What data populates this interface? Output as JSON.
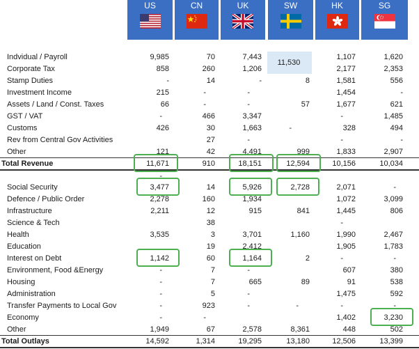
{
  "countries": [
    {
      "code": "US",
      "flag": "us-flag-icon"
    },
    {
      "code": "CN",
      "flag": "cn-flag-icon"
    },
    {
      "code": "UK",
      "flag": "uk-flag-icon"
    },
    {
      "code": "SW",
      "flag": "sw-flag-icon"
    },
    {
      "code": "HK",
      "flag": "hk-flag-icon"
    },
    {
      "code": "SG",
      "flag": "sg-flag-icon"
    }
  ],
  "revenue_rows": [
    {
      "label": "Indvidual / Payroll",
      "values": [
        "9,985",
        "70",
        "7,443",
        "11,530",
        "1,107",
        "1,620"
      ]
    },
    {
      "label": "Corporate Tax",
      "values": [
        "858",
        "260",
        "1,206",
        "",
        "2,177",
        "2,353"
      ]
    },
    {
      "label": "Stamp Duties",
      "values": [
        "-",
        "14",
        "-",
        "8",
        "1,581",
        "556"
      ]
    },
    {
      "label": "Investment Income",
      "values": [
        "215",
        "-",
        "-",
        "",
        "1,454",
        "-"
      ]
    },
    {
      "label": "Assets / Land / Const. Taxes",
      "values": [
        "66",
        "-",
        "-",
        "57",
        "1,677",
        "621"
      ]
    },
    {
      "label": "GST / VAT",
      "values": [
        "-",
        "466",
        "3,347",
        "",
        "-",
        "1,485"
      ]
    },
    {
      "label": "Customs",
      "values": [
        "426",
        "30",
        "1,663",
        "-",
        "328",
        "494"
      ]
    },
    {
      "label": "Rev from Central Gov Activities",
      "values": [
        "",
        "27",
        "-",
        "",
        "-",
        "-"
      ]
    },
    {
      "label": "Other",
      "values": [
        "121",
        "42",
        "4,491",
        "999",
        "1,833",
        "2,907"
      ]
    }
  ],
  "total_revenue": {
    "label": "Total Revenue",
    "values": [
      "11,671",
      "910",
      "18,151",
      "12,594",
      "10,156",
      "10,034"
    ]
  },
  "separator_dash": "-",
  "outlay_rows": [
    {
      "label": "Social Security",
      "values": [
        "3,477",
        "14",
        "5,926",
        "2,728",
        "2,071",
        "-"
      ]
    },
    {
      "label": "Defence / Public Order",
      "values": [
        "2,278",
        "160",
        "1,934",
        "",
        "1,072",
        "3,099"
      ]
    },
    {
      "label": "Infrastructure",
      "values": [
        "2,211",
        "12",
        "915",
        "841",
        "1,445",
        "806"
      ]
    },
    {
      "label": "Science & Tech",
      "values": [
        "",
        "38",
        "",
        "",
        "-",
        ""
      ]
    },
    {
      "label": "Health",
      "values": [
        "3,535",
        "3",
        "3,701",
        "1,160",
        "1,990",
        "2,467"
      ]
    },
    {
      "label": "Education",
      "values": [
        "",
        "19",
        "2,412",
        "",
        "1,905",
        "1,783"
      ]
    },
    {
      "label": "Interest on Debt",
      "values": [
        "1,142",
        "60",
        "1,164",
        "2",
        "-",
        "-"
      ]
    },
    {
      "label": "Environment, Food &Energy",
      "values": [
        "-",
        "7",
        "-",
        "",
        "607",
        "380"
      ]
    },
    {
      "label": "Housing",
      "values": [
        "-",
        "7",
        "665",
        "89",
        "91",
        "538"
      ]
    },
    {
      "label": "Administration",
      "values": [
        "-",
        "5",
        "-",
        "",
        "1,475",
        "592"
      ]
    },
    {
      "label": "Transfer Payments to Local Gov",
      "values": [
        "-",
        "923",
        "-",
        "-",
        "-",
        "-"
      ]
    },
    {
      "label": "Economy",
      "values": [
        "-",
        "-",
        "",
        "",
        "1,402",
        "3,230"
      ]
    },
    {
      "label": "Other",
      "values": [
        "1,949",
        "67",
        "2,578",
        "8,361",
        "448",
        "502"
      ]
    }
  ],
  "total_outlays": {
    "label": "Total Outlays",
    "values": [
      "14,592",
      "1,314",
      "19,295",
      "13,180",
      "12,506",
      "13,399"
    ]
  },
  "colors": {
    "header": "#3a6fc4",
    "highlight_box": "#4caf50",
    "shaded_cell": "#dbe9f6"
  }
}
